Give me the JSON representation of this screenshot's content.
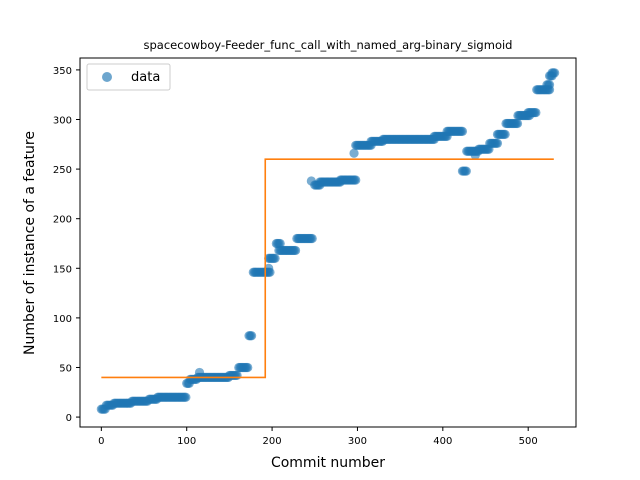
{
  "chart_data": {
    "type": "scatter",
    "title": "spacecowboy-Feeder_func_call_with_named_arg-binary_sigmoid",
    "xlabel": "Commit number",
    "ylabel": "Number of instance of a feature",
    "xlim": [
      -25,
      556
    ],
    "ylim": [
      -10,
      362
    ],
    "xticks": [
      0,
      100,
      200,
      300,
      400,
      500
    ],
    "yticks": [
      0,
      50,
      100,
      150,
      200,
      250,
      300,
      350
    ],
    "grid": false,
    "legend": {
      "location": "upper-left",
      "entries": [
        "data"
      ]
    },
    "colors": {
      "data": "#1f77b4",
      "fit": "#ff7f0e"
    },
    "series": [
      {
        "name": "data",
        "kind": "scatter",
        "segments": [
          {
            "x_start": 0,
            "x_end": 5,
            "y": 8
          },
          {
            "x_start": 6,
            "x_end": 14,
            "y": 12
          },
          {
            "x_start": 15,
            "x_end": 35,
            "y": 14
          },
          {
            "x_start": 36,
            "x_end": 55,
            "y": 16
          },
          {
            "x_start": 56,
            "x_end": 65,
            "y": 18
          },
          {
            "x_start": 66,
            "x_end": 100,
            "y": 20
          },
          {
            "x_start": 100,
            "x_end": 104,
            "y": 34
          },
          {
            "x_start": 104,
            "x_end": 112,
            "y": 38
          },
          {
            "x_start": 113,
            "x_end": 150,
            "y": 40
          },
          {
            "x_start": 150,
            "x_end": 160,
            "y": 42
          },
          {
            "x_start": 161,
            "x_end": 172,
            "y": 50
          },
          {
            "x_start": 173,
            "x_end": 177,
            "y": 82
          },
          {
            "x_start": 178,
            "x_end": 198,
            "y": 146
          },
          {
            "x_start": 196,
            "x_end": 204,
            "y": 160
          },
          {
            "x_start": 205,
            "x_end": 210,
            "y": 175
          },
          {
            "x_start": 208,
            "x_end": 228,
            "y": 168
          },
          {
            "x_start": 229,
            "x_end": 248,
            "y": 180
          },
          {
            "x_start": 250,
            "x_end": 256,
            "y": 234
          },
          {
            "x_start": 256,
            "x_end": 280,
            "y": 237
          },
          {
            "x_start": 280,
            "x_end": 298,
            "y": 239
          },
          {
            "x_start": 298,
            "x_end": 316,
            "y": 274
          },
          {
            "x_start": 316,
            "x_end": 330,
            "y": 278
          },
          {
            "x_start": 330,
            "x_end": 390,
            "y": 280
          },
          {
            "x_start": 390,
            "x_end": 405,
            "y": 283
          },
          {
            "x_start": 405,
            "x_end": 424,
            "y": 288
          },
          {
            "x_start": 423,
            "x_end": 428,
            "y": 248
          },
          {
            "x_start": 428,
            "x_end": 442,
            "y": 268
          },
          {
            "x_start": 442,
            "x_end": 455,
            "y": 270
          },
          {
            "x_start": 455,
            "x_end": 464,
            "y": 276
          },
          {
            "x_start": 464,
            "x_end": 474,
            "y": 285
          },
          {
            "x_start": 474,
            "x_end": 488,
            "y": 296
          },
          {
            "x_start": 488,
            "x_end": 502,
            "y": 304
          },
          {
            "x_start": 500,
            "x_end": 510,
            "y": 307
          },
          {
            "x_start": 510,
            "x_end": 525,
            "y": 330
          },
          {
            "x_start": 522,
            "x_end": 526,
            "y": 335
          },
          {
            "x_start": 525,
            "x_end": 528,
            "y": 344
          },
          {
            "x_start": 528,
            "x_end": 532,
            "y": 347
          }
        ],
        "points": [
          {
            "x": 115,
            "y": 45
          },
          {
            "x": 196,
            "y": 150
          },
          {
            "x": 246,
            "y": 238
          },
          {
            "x": 296,
            "y": 266
          },
          {
            "x": 438,
            "y": 264
          }
        ]
      },
      {
        "name": "",
        "kind": "step-line",
        "x": [
          0,
          192,
          192,
          530
        ],
        "values": [
          40,
          40,
          260,
          260
        ]
      }
    ]
  }
}
